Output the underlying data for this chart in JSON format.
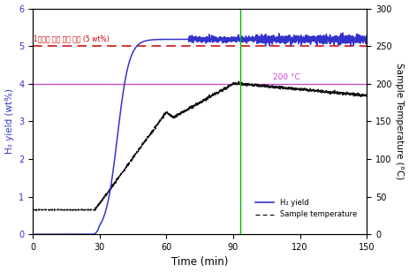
{
  "xlim": [
    0,
    150
  ],
  "ylim_left": [
    0,
    6
  ],
  "ylim_right": [
    0,
    300
  ],
  "yticks_left": [
    0,
    1,
    2,
    3,
    4,
    5,
    6
  ],
  "yticks_right": [
    0,
    50,
    100,
    150,
    200,
    250,
    300
  ],
  "xticks": [
    0,
    30,
    60,
    90,
    120,
    150
  ],
  "xlabel": "Time (min)",
  "ylabel_left": "H₂ yield (wt%)",
  "ylabel_right": "Sample Temperature (°C)",
  "target_line_y": 5.0,
  "target_line_label": "1차년도 수소 수율 목표 (5 wt%)",
  "target_line_color": "#cc0000",
  "temp_line_y_left": 4.0,
  "temp_line_label": "200 °C",
  "temp_line_color": "#cc44cc",
  "vertical_line_x": 93,
  "vertical_line_color": "#00bb00",
  "h2_line_color": "#3333cc",
  "temp_curve_color": "#111111",
  "legend_h2": "H₂ yield",
  "legend_temp": "Sample temperature",
  "figsize": [
    4.63,
    3.09
  ],
  "dpi": 100
}
